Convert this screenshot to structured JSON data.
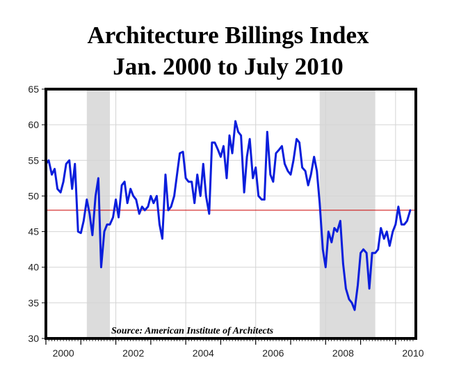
{
  "chart_data": {
    "type": "line",
    "title": "Architecture Billings Index",
    "subtitle": "Jan. 2000 to July 2010",
    "source": "Source: American Institute of Architects",
    "xlabel": "",
    "ylabel": "",
    "xlim": [
      2000.0,
      2010.58
    ],
    "ylim": [
      30,
      65
    ],
    "yticks": [
      30,
      35,
      40,
      45,
      50,
      55,
      60,
      65
    ],
    "xticks": [
      2000,
      2002,
      2004,
      2006,
      2008,
      2010
    ],
    "grid": true,
    "reference_line": {
      "y": 48.0,
      "color": "#cc0000"
    },
    "shaded_periods": [
      {
        "start": 2001.17,
        "end": 2001.83
      },
      {
        "start": 2007.83,
        "end": 2009.42
      }
    ],
    "series": [
      {
        "color": "#0a1edc",
        "points": [
          [
            2000.0,
            54.5
          ],
          [
            2000.08,
            55.0
          ],
          [
            2000.17,
            53.0
          ],
          [
            2000.25,
            53.8
          ],
          [
            2000.33,
            51.0
          ],
          [
            2000.42,
            50.5
          ],
          [
            2000.5,
            52.0
          ],
          [
            2000.58,
            54.5
          ],
          [
            2000.67,
            55.0
          ],
          [
            2000.75,
            51.0
          ],
          [
            2000.83,
            54.5
          ],
          [
            2000.92,
            45.0
          ],
          [
            2001.0,
            44.8
          ],
          [
            2001.08,
            46.5
          ],
          [
            2001.17,
            49.5
          ],
          [
            2001.25,
            47.5
          ],
          [
            2001.33,
            44.5
          ],
          [
            2001.42,
            50.0
          ],
          [
            2001.5,
            52.5
          ],
          [
            2001.58,
            40.0
          ],
          [
            2001.67,
            45.0
          ],
          [
            2001.75,
            46.0
          ],
          [
            2001.83,
            46.0
          ],
          [
            2001.92,
            47.0
          ],
          [
            2002.0,
            49.5
          ],
          [
            2002.08,
            47.0
          ],
          [
            2002.17,
            51.5
          ],
          [
            2002.25,
            52.0
          ],
          [
            2002.33,
            49.0
          ],
          [
            2002.42,
            51.0
          ],
          [
            2002.5,
            50.0
          ],
          [
            2002.58,
            49.5
          ],
          [
            2002.67,
            47.5
          ],
          [
            2002.75,
            48.5
          ],
          [
            2002.83,
            48.0
          ],
          [
            2002.92,
            48.5
          ],
          [
            2003.0,
            50.0
          ],
          [
            2003.08,
            49.0
          ],
          [
            2003.17,
            50.0
          ],
          [
            2003.25,
            46.0
          ],
          [
            2003.33,
            44.0
          ],
          [
            2003.42,
            53.0
          ],
          [
            2003.5,
            48.0
          ],
          [
            2003.58,
            48.5
          ],
          [
            2003.67,
            50.0
          ],
          [
            2003.75,
            53.0
          ],
          [
            2003.83,
            56.0
          ],
          [
            2003.92,
            56.2
          ],
          [
            2004.0,
            52.5
          ],
          [
            2004.08,
            52.0
          ],
          [
            2004.17,
            52.0
          ],
          [
            2004.25,
            49.0
          ],
          [
            2004.33,
            53.0
          ],
          [
            2004.42,
            50.0
          ],
          [
            2004.5,
            54.5
          ],
          [
            2004.58,
            50.0
          ],
          [
            2004.67,
            47.5
          ],
          [
            2004.75,
            57.5
          ],
          [
            2004.83,
            57.5
          ],
          [
            2004.92,
            56.5
          ],
          [
            2005.0,
            55.5
          ],
          [
            2005.08,
            57.0
          ],
          [
            2005.17,
            52.5
          ],
          [
            2005.25,
            58.5
          ],
          [
            2005.33,
            56.0
          ],
          [
            2005.42,
            60.5
          ],
          [
            2005.5,
            59.0
          ],
          [
            2005.58,
            58.5
          ],
          [
            2005.67,
            50.5
          ],
          [
            2005.75,
            55.5
          ],
          [
            2005.83,
            58.0
          ],
          [
            2005.92,
            52.5
          ],
          [
            2006.0,
            54.0
          ],
          [
            2006.08,
            50.0
          ],
          [
            2006.17,
            49.5
          ],
          [
            2006.25,
            49.5
          ],
          [
            2006.33,
            59.0
          ],
          [
            2006.42,
            53.0
          ],
          [
            2006.5,
            52.0
          ],
          [
            2006.58,
            56.0
          ],
          [
            2006.67,
            56.5
          ],
          [
            2006.75,
            57.0
          ],
          [
            2006.83,
            54.5
          ],
          [
            2006.92,
            53.5
          ],
          [
            2007.0,
            53.0
          ],
          [
            2007.08,
            55.0
          ],
          [
            2007.17,
            58.0
          ],
          [
            2007.25,
            57.5
          ],
          [
            2007.33,
            54.0
          ],
          [
            2007.42,
            53.5
          ],
          [
            2007.5,
            51.5
          ],
          [
            2007.58,
            53.0
          ],
          [
            2007.67,
            55.5
          ],
          [
            2007.75,
            53.5
          ],
          [
            2007.83,
            49.0
          ],
          [
            2007.92,
            42.5
          ],
          [
            2008.0,
            40.0
          ],
          [
            2008.08,
            45.0
          ],
          [
            2008.17,
            43.5
          ],
          [
            2008.25,
            45.5
          ],
          [
            2008.33,
            45.0
          ],
          [
            2008.42,
            46.5
          ],
          [
            2008.5,
            40.5
          ],
          [
            2008.58,
            37.0
          ],
          [
            2008.67,
            35.5
          ],
          [
            2008.75,
            35.0
          ],
          [
            2008.83,
            34.0
          ],
          [
            2008.92,
            37.5
          ],
          [
            2009.0,
            42.0
          ],
          [
            2009.08,
            42.5
          ],
          [
            2009.17,
            42.0
          ],
          [
            2009.25,
            37.0
          ],
          [
            2009.33,
            42.0
          ],
          [
            2009.42,
            42.0
          ],
          [
            2009.5,
            42.5
          ],
          [
            2009.58,
            45.5
          ],
          [
            2009.67,
            44.0
          ],
          [
            2009.75,
            45.0
          ],
          [
            2009.83,
            43.0
          ],
          [
            2009.92,
            45.0
          ],
          [
            2010.0,
            46.0
          ],
          [
            2010.08,
            48.5
          ],
          [
            2010.17,
            46.0
          ],
          [
            2010.25,
            46.0
          ],
          [
            2010.33,
            46.5
          ],
          [
            2010.42,
            48.0
          ]
        ]
      }
    ]
  }
}
